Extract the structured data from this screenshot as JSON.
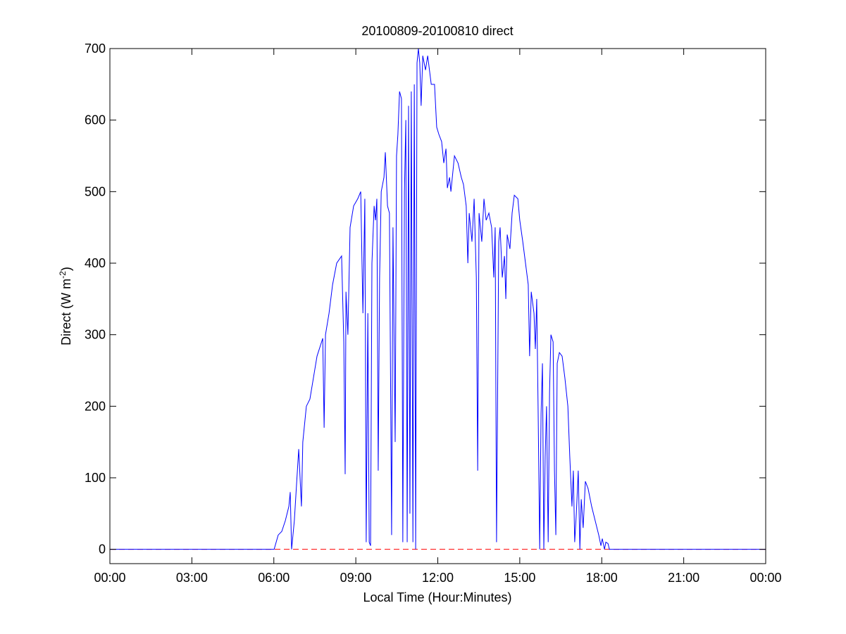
{
  "chart_data": {
    "type": "line",
    "title": "20100809-20100810 direct",
    "xlabel": "Local Time (Hour:Minutes)",
    "ylabel": {
      "text": "Direct (W m",
      "superscript": "-2",
      "suffix": ")"
    },
    "xlim": [
      0,
      24
    ],
    "ylim": [
      -20,
      700
    ],
    "xticks": [
      {
        "value": 0,
        "label": "00:00"
      },
      {
        "value": 3,
        "label": "03:00"
      },
      {
        "value": 6,
        "label": "06:00"
      },
      {
        "value": 9,
        "label": "09:00"
      },
      {
        "value": 12,
        "label": "12:00"
      },
      {
        "value": 15,
        "label": "15:00"
      },
      {
        "value": 18,
        "label": "18:00"
      },
      {
        "value": 21,
        "label": "21:00"
      },
      {
        "value": 24,
        "label": "00:00"
      }
    ],
    "yticks": [
      0,
      100,
      200,
      300,
      400,
      500,
      600,
      700
    ],
    "grid": false,
    "color": "#0000ff",
    "reference_line": {
      "value": 0,
      "color": "#ff0000",
      "dashed": true
    },
    "x": [
      0,
      6.01,
      6.16,
      6.29,
      6.42,
      6.55,
      6.6,
      6.65,
      6.75,
      6.91,
      7.01,
      7.06,
      7.19,
      7.32,
      7.45,
      7.58,
      7.79,
      7.84,
      7.89,
      8.02,
      8.15,
      8.3,
      8.48,
      8.56,
      8.61,
      8.64,
      8.71,
      8.79,
      8.92,
      9.07,
      9.18,
      9.26,
      9.33,
      9.38,
      9.44,
      9.49,
      9.54,
      9.59,
      9.67,
      9.72,
      9.77,
      9.82,
      9.87,
      9.93,
      10.03,
      10.08,
      10.16,
      10.23,
      10.31,
      10.36,
      10.44,
      10.49,
      10.54,
      10.6,
      10.67,
      10.72,
      10.78,
      10.83,
      10.88,
      10.93,
      10.98,
      11.03,
      11.09,
      11.14,
      11.19,
      11.24,
      11.29,
      11.34,
      11.39,
      11.45,
      11.55,
      11.63,
      11.76,
      11.88,
      11.96,
      12.04,
      12.14,
      12.22,
      12.3,
      12.35,
      12.43,
      12.48,
      12.61,
      12.74,
      12.86,
      12.94,
      13.04,
      13.1,
      13.15,
      13.25,
      13.33,
      13.41,
      13.46,
      13.51,
      13.61,
      13.69,
      13.77,
      13.87,
      13.97,
      14.05,
      14.1,
      14.15,
      14.23,
      14.28,
      14.36,
      14.44,
      14.49,
      14.54,
      14.64,
      14.72,
      14.8,
      14.93,
      15.0,
      15.11,
      15.21,
      15.31,
      15.36,
      15.42,
      15.52,
      15.57,
      15.62,
      15.67,
      15.73,
      15.78,
      15.83,
      15.88,
      15.93,
      15.98,
      16.04,
      16.09,
      16.14,
      16.22,
      16.27,
      16.32,
      16.37,
      16.45,
      16.55,
      16.65,
      16.76,
      16.83,
      16.91,
      16.96,
      17.01,
      17.07,
      17.14,
      17.2,
      17.25,
      17.32,
      17.4,
      17.5,
      17.63,
      17.76,
      17.89,
      17.97,
      18.02,
      18.1,
      18.15,
      18.23,
      18.28,
      24
    ],
    "values": [
      0,
      0,
      20,
      25,
      40,
      60,
      80,
      0,
      40,
      140,
      60,
      150,
      200,
      210,
      240,
      270,
      295,
      170,
      300,
      330,
      370,
      400,
      410,
      290,
      105,
      360,
      300,
      450,
      480,
      490,
      500,
      330,
      490,
      10,
      330,
      10,
      5,
      400,
      480,
      460,
      490,
      110,
      380,
      500,
      520,
      555,
      480,
      470,
      20,
      450,
      150,
      550,
      580,
      640,
      630,
      10,
      500,
      600,
      10,
      620,
      50,
      640,
      10,
      650,
      0,
      680,
      700,
      680,
      620,
      690,
      670,
      690,
      650,
      650,
      590,
      580,
      570,
      540,
      560,
      505,
      520,
      500,
      550,
      540,
      520,
      510,
      480,
      400,
      470,
      430,
      490,
      380,
      110,
      470,
      430,
      490,
      460,
      470,
      450,
      380,
      450,
      10,
      430,
      450,
      380,
      410,
      350,
      440,
      420,
      470,
      495,
      490,
      460,
      430,
      400,
      370,
      270,
      360,
      330,
      280,
      350,
      200,
      0,
      190,
      260,
      0,
      130,
      200,
      10,
      220,
      300,
      290,
      110,
      20,
      260,
      275,
      270,
      240,
      200,
      130,
      60,
      110,
      10,
      50,
      110,
      0,
      70,
      30,
      95,
      85,
      60,
      40,
      20,
      5,
      15,
      0,
      10,
      8,
      0,
      0
    ]
  }
}
